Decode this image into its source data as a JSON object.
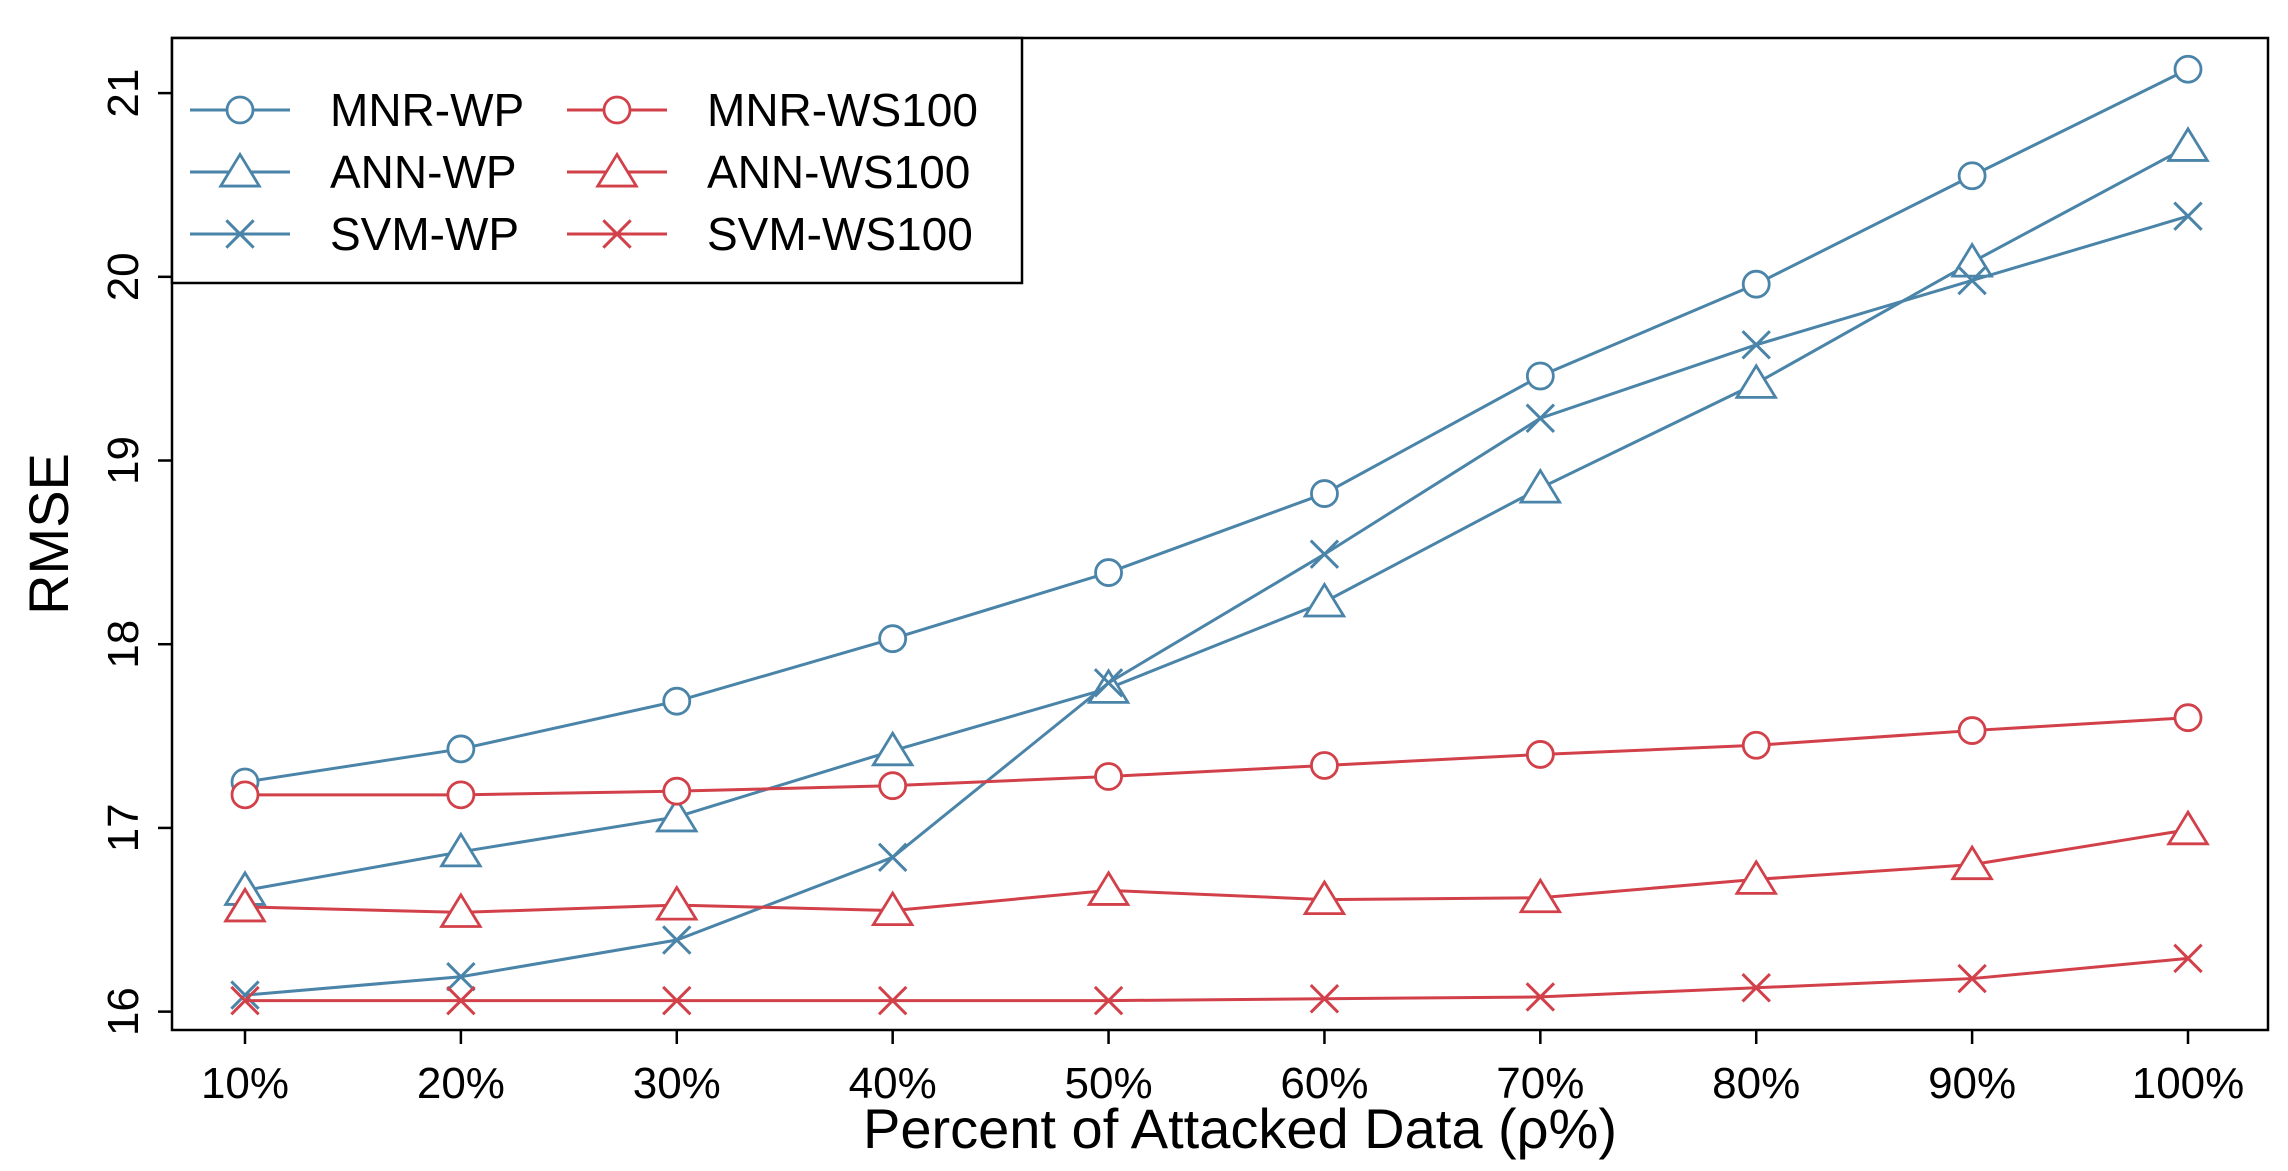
{
  "chart_data": {
    "type": "line",
    "title": "",
    "xlabel": "Percent of Attacked Data (ρ%)",
    "ylabel": "RMSE",
    "categories": [
      "10%",
      "20%",
      "30%",
      "40%",
      "50%",
      "60%",
      "70%",
      "80%",
      "90%",
      "100%"
    ],
    "yticks": [
      16,
      17,
      18,
      19,
      20,
      21
    ],
    "ylim": [
      15.9,
      21.3
    ],
    "grid": false,
    "legend": {
      "placement": "top-left",
      "columns": 2
    },
    "series": [
      {
        "name": "MNR-WP",
        "color": "#4a84a8",
        "marker": "circle",
        "dash": "solid",
        "values": [
          17.25,
          17.43,
          17.69,
          18.03,
          18.39,
          18.82,
          19.46,
          19.96,
          20.55,
          21.13
        ]
      },
      {
        "name": "ANN-WP",
        "color": "#4a84a8",
        "marker": "triangle",
        "dash": "solid",
        "values": [
          16.66,
          16.87,
          17.06,
          17.42,
          17.76,
          18.23,
          18.85,
          19.42,
          20.08,
          20.71
        ]
      },
      {
        "name": "SVM-WP",
        "color": "#4a84a8",
        "marker": "x",
        "dash": "solid",
        "values": [
          16.09,
          16.19,
          16.39,
          16.84,
          17.79,
          18.49,
          19.23,
          19.63,
          19.98,
          20.33
        ]
      },
      {
        "name": "MNR-WS100",
        "color": "#d2404a",
        "marker": "circle",
        "dash": "solid",
        "values": [
          17.18,
          17.18,
          17.2,
          17.23,
          17.28,
          17.34,
          17.4,
          17.45,
          17.53,
          17.6
        ]
      },
      {
        "name": "ANN-WS100",
        "color": "#d2404a",
        "marker": "triangle",
        "dash": "solid",
        "values": [
          16.57,
          16.54,
          16.58,
          16.55,
          16.66,
          16.61,
          16.62,
          16.72,
          16.8,
          16.99
        ]
      },
      {
        "name": "SVM-WS100",
        "color": "#d2404a",
        "marker": "x",
        "dash": "solid",
        "values": [
          16.06,
          16.06,
          16.06,
          16.06,
          16.06,
          16.07,
          16.08,
          16.13,
          16.18,
          16.29
        ]
      }
    ]
  }
}
